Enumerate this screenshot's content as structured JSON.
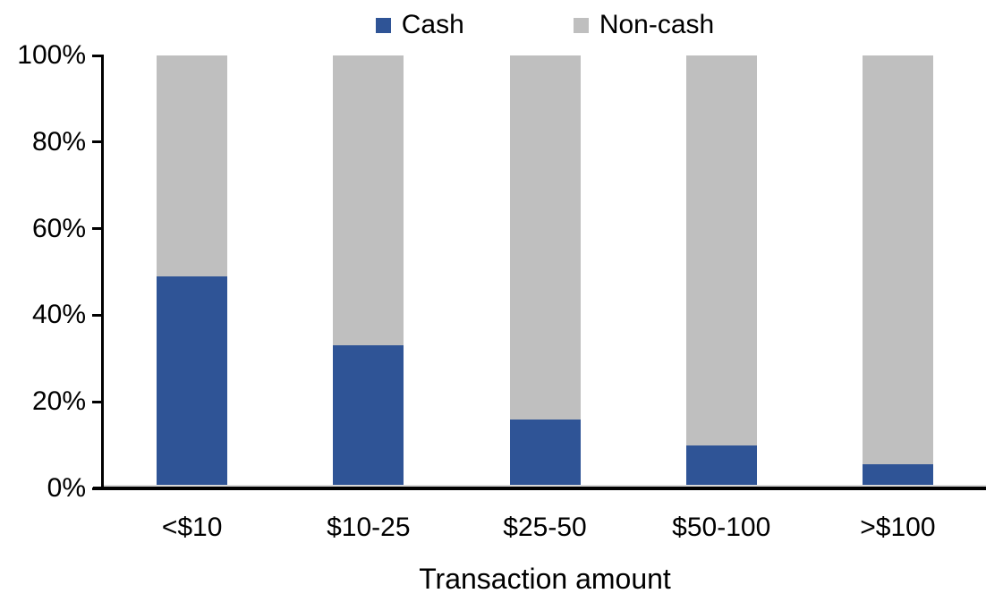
{
  "chart_data": {
    "type": "bar",
    "stacked": true,
    "orientation": "vertical",
    "categories": [
      "<$10",
      "$10-25",
      "$25-50",
      "$50-100",
      ">$100"
    ],
    "series": [
      {
        "name": "Cash",
        "color": "#2f5496",
        "values": [
          49,
          33,
          16,
          10,
          5.5
        ]
      },
      {
        "name": "Non-cash",
        "color": "#bfbfbf",
        "values": [
          51,
          67,
          84,
          90,
          94.5
        ]
      }
    ],
    "title": "",
    "xlabel": "Transaction amount",
    "ylabel": "",
    "ylim": [
      0,
      100
    ],
    "ytick_labels": [
      "0%",
      "20%",
      "40%",
      "60%",
      "80%",
      "100%"
    ],
    "ytick_values": [
      0,
      20,
      40,
      60,
      80,
      100
    ],
    "grid": false,
    "legend_position": "top-center",
    "axis_color": "#000000",
    "background_color": "#ffffff"
  }
}
